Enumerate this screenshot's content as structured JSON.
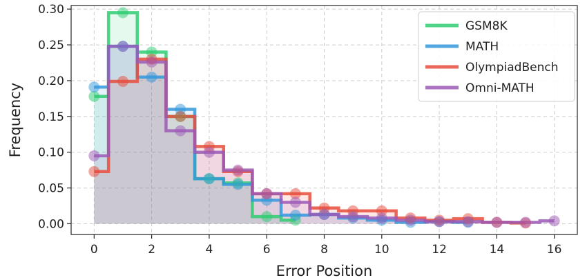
{
  "chart_data": {
    "type": "line",
    "title": "",
    "xlabel": "Error Position",
    "ylabel": "Frequency",
    "xlim": [
      -0.8,
      16.8
    ],
    "ylim": [
      -0.015,
      0.305
    ],
    "xticks": [
      "0",
      "2",
      "4",
      "6",
      "8",
      "10",
      "12",
      "14",
      "16"
    ],
    "yticks": [
      "0.00",
      "0.05",
      "0.10",
      "0.15",
      "0.20",
      "0.25",
      "0.30"
    ],
    "grid": true,
    "legend_position": "top-right",
    "series": [
      {
        "name": "GSM8K",
        "color": "#2ecc71",
        "x": [
          0,
          1,
          2,
          3,
          4,
          5,
          6,
          7
        ],
        "values": [
          0.178,
          0.295,
          0.24,
          0.15,
          0.063,
          0.057,
          0.01,
          0.005
        ]
      },
      {
        "name": "MATH",
        "color": "#3498db",
        "x": [
          0,
          1,
          2,
          3,
          4,
          5,
          6,
          7,
          8,
          9,
          10,
          11,
          12,
          13
        ],
        "values": [
          0.191,
          0.248,
          0.205,
          0.16,
          0.063,
          0.055,
          0.033,
          0.012,
          0.013,
          0.008,
          0.005,
          0.002,
          0.003,
          0.002
        ]
      },
      {
        "name": "OlympiadBench",
        "color": "#e74c3c",
        "x": [
          0,
          1,
          2,
          3,
          4,
          5,
          6,
          7,
          8,
          9,
          10,
          11,
          12,
          13,
          14,
          15
        ],
        "values": [
          0.073,
          0.199,
          0.23,
          0.15,
          0.108,
          0.073,
          0.042,
          0.042,
          0.022,
          0.018,
          0.018,
          0.008,
          0.005,
          0.007,
          0.002,
          0.001
        ]
      },
      {
        "name": "Omni-MATH",
        "color": "#9b59b6",
        "x": [
          0,
          1,
          2,
          3,
          4,
          5,
          6,
          7,
          8,
          9,
          10,
          11,
          12,
          13,
          14,
          15,
          16
        ],
        "values": [
          0.095,
          0.248,
          0.226,
          0.13,
          0.1,
          0.075,
          0.042,
          0.03,
          0.013,
          0.01,
          0.008,
          0.005,
          0.003,
          0.003,
          0.002,
          0.002,
          0.004
        ]
      }
    ]
  }
}
